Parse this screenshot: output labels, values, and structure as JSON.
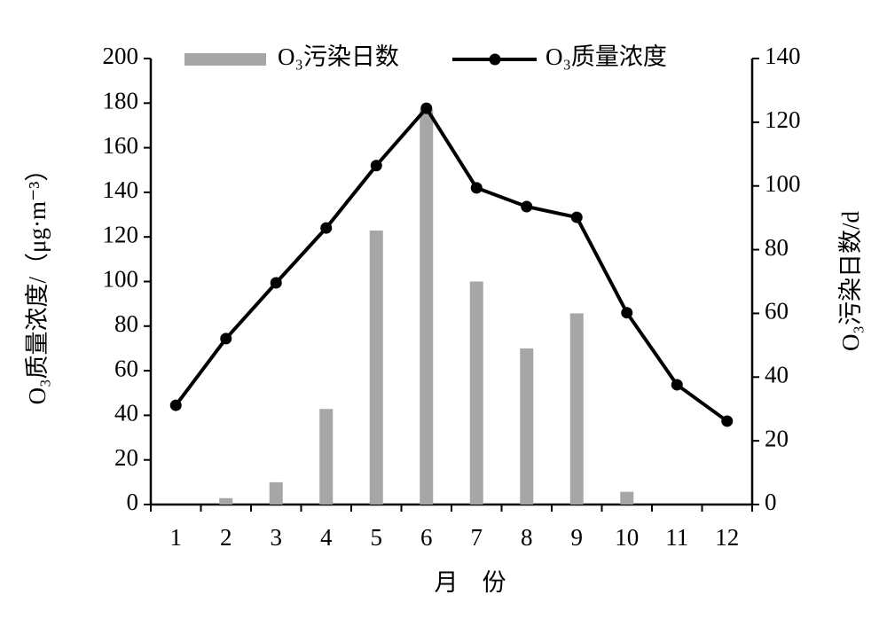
{
  "chart_data": {
    "type": "bar",
    "categories": [
      "1",
      "2",
      "3",
      "4",
      "5",
      "6",
      "7",
      "8",
      "9",
      "10",
      "11",
      "12"
    ],
    "xlabel": "月　份",
    "ylabel": "O₃质量浓度/（μg·m⁻³）",
    "y2label": "O₃污染日数/d",
    "ylim": [
      0,
      200
    ],
    "yticks": [
      0,
      20,
      40,
      60,
      80,
      100,
      120,
      140,
      160,
      180,
      200
    ],
    "y2lim": [
      0,
      140
    ],
    "y2ticks": [
      0,
      20,
      40,
      60,
      80,
      100,
      120,
      140
    ],
    "series": [
      {
        "name": "O₃污染日数",
        "type": "bar",
        "axis": "y2",
        "color": "#a6a6a6",
        "values": [
          0,
          2,
          7,
          30,
          86,
          124,
          70,
          49,
          60,
          4,
          0,
          0
        ]
      },
      {
        "name": "O₃质量浓度",
        "type": "line",
        "color": "#000000",
        "values": [
          44.5,
          74.4,
          99.4,
          124,
          152,
          177.7,
          142,
          133.6,
          128.8,
          86,
          53.7,
          37.4
        ]
      }
    ]
  }
}
